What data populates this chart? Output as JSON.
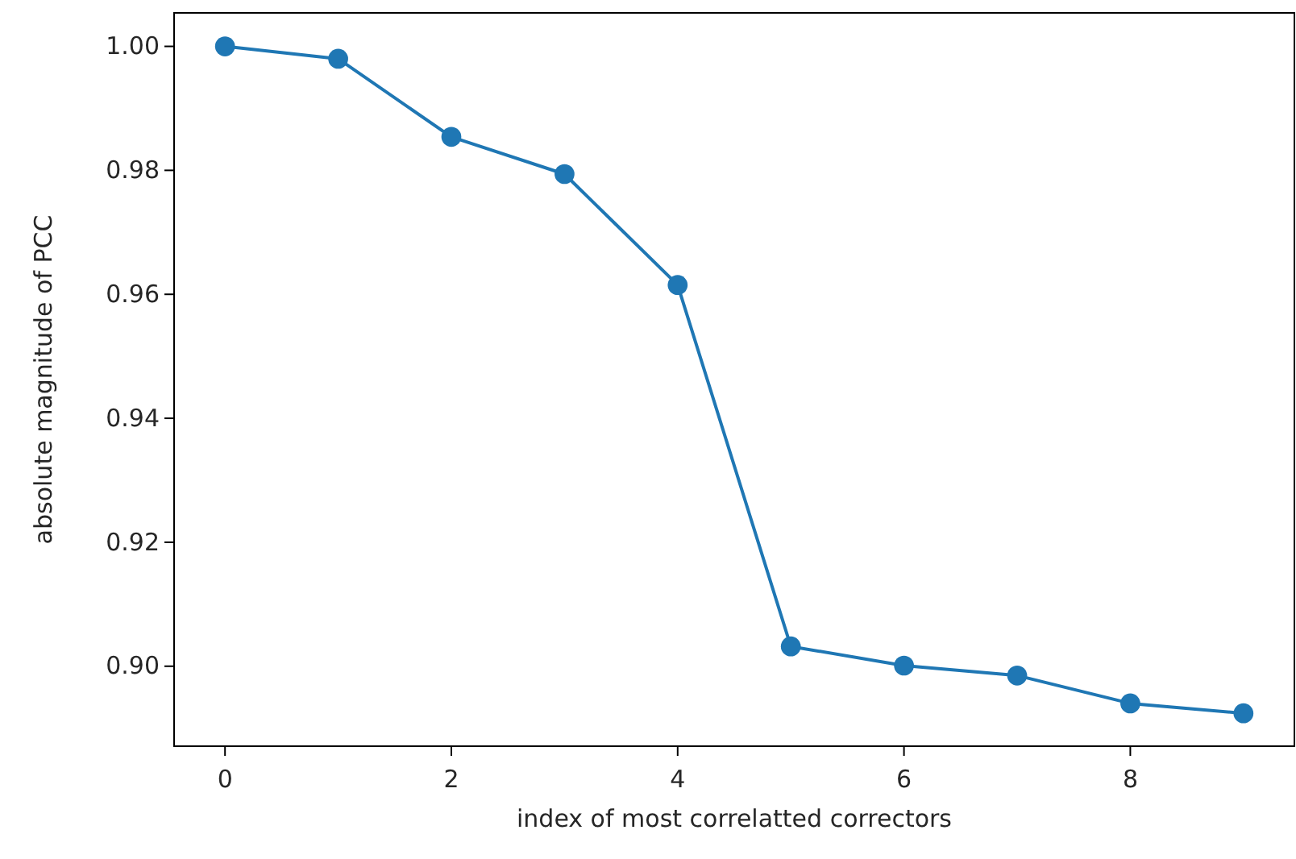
{
  "chart_data": {
    "type": "line",
    "xlabel": "index of most correlatted correctors",
    "ylabel": "absolute magnitude of PCC",
    "x": [
      0,
      1,
      2,
      3,
      4,
      5,
      6,
      7,
      8,
      9
    ],
    "series": [
      {
        "color": "#1f77b4",
        "values": [
          1.0,
          0.998,
          0.9854,
          0.9794,
          0.9615,
          0.9032,
          0.9001,
          0.8985,
          0.894,
          0.8924
        ]
      }
    ],
    "xlim": [
      -0.45,
      9.45
    ],
    "ylim": [
      0.8871,
      1.0054
    ],
    "xticks": [
      0,
      2,
      4,
      6,
      8
    ],
    "yticks": [
      {
        "value": 0.9,
        "label": "0.90"
      },
      {
        "value": 0.92,
        "label": "0.92"
      },
      {
        "value": 0.94,
        "label": "0.94"
      },
      {
        "value": 0.96,
        "label": "0.96"
      },
      {
        "value": 0.98,
        "label": "0.98"
      },
      {
        "value": 1.0,
        "label": "1.00"
      }
    ],
    "marker": "circle",
    "grid": false
  }
}
